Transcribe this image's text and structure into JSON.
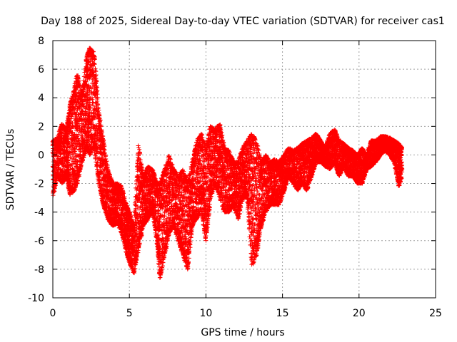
{
  "chart_data": {
    "type": "scatter",
    "title": "Day 188 of 2025, Sidereal Day-to-day VTEC variation (SDTVAR) for receiver cas1",
    "xlabel": "GPS time / hours",
    "ylabel": "SDTVAR / TECUs",
    "xlim": [
      0,
      25
    ],
    "ylim": [
      -10,
      8
    ],
    "xticks": [
      0,
      5,
      10,
      15,
      20,
      25
    ],
    "yticks": [
      -10,
      -8,
      -6,
      -4,
      -2,
      0,
      2,
      4,
      6,
      8
    ],
    "grid": true,
    "marker": "+",
    "color": "#ff0000",
    "series": [
      {
        "name": "SDTVAR",
        "envelope": [
          [
            0.0,
            -3.0,
            1.0
          ],
          [
            0.3,
            -1.5,
            1.2
          ],
          [
            0.6,
            -2.0,
            2.2
          ],
          [
            0.9,
            -1.5,
            1.8
          ],
          [
            1.1,
            -2.8,
            3.5
          ],
          [
            1.4,
            -2.5,
            4.7
          ],
          [
            1.6,
            -2.0,
            5.7
          ],
          [
            1.9,
            -0.5,
            4.2
          ],
          [
            2.2,
            0.5,
            6.8
          ],
          [
            2.4,
            0.0,
            7.5
          ],
          [
            2.7,
            0.5,
            7.2
          ],
          [
            3.0,
            -2.0,
            3.0
          ],
          [
            3.3,
            -3.5,
            1.0
          ],
          [
            3.6,
            -4.5,
            -1.0
          ],
          [
            3.9,
            -5.0,
            -2.0
          ],
          [
            4.2,
            -4.8,
            -2.0
          ],
          [
            4.5,
            -5.5,
            -2.2
          ],
          [
            4.8,
            -6.8,
            -3.5
          ],
          [
            5.0,
            -7.5,
            -4.0
          ],
          [
            5.3,
            -8.3,
            -5.0
          ],
          [
            5.6,
            -6.5,
            0.8
          ],
          [
            5.9,
            -5.0,
            -1.5
          ],
          [
            6.2,
            -4.5,
            -0.8
          ],
          [
            6.5,
            -4.0,
            -1.0
          ],
          [
            6.8,
            -6.0,
            -2.0
          ],
          [
            7.0,
            -8.8,
            -2.0
          ],
          [
            7.3,
            -7.0,
            -1.0
          ],
          [
            7.6,
            -5.5,
            0.0
          ],
          [
            7.9,
            -5.0,
            -1.0
          ],
          [
            8.2,
            -6.0,
            -1.5
          ],
          [
            8.5,
            -7.0,
            -1.0
          ],
          [
            8.8,
            -8.0,
            -2.0
          ],
          [
            9.1,
            -5.0,
            -0.5
          ],
          [
            9.4,
            -4.5,
            1.0
          ],
          [
            9.7,
            -4.0,
            1.5
          ],
          [
            10.0,
            -6.0,
            0.5
          ],
          [
            10.3,
            -3.0,
            2.0
          ],
          [
            10.6,
            -2.0,
            1.8
          ],
          [
            10.9,
            -3.0,
            2.2
          ],
          [
            11.2,
            -4.0,
            0.5
          ],
          [
            11.5,
            -4.0,
            0.3
          ],
          [
            11.8,
            -3.5,
            -0.5
          ],
          [
            12.1,
            -4.5,
            -0.5
          ],
          [
            12.4,
            -3.0,
            0.5
          ],
          [
            12.7,
            -3.0,
            1.0
          ],
          [
            13.0,
            -7.8,
            1.5
          ],
          [
            13.3,
            -7.0,
            1.0
          ],
          [
            13.6,
            -5.0,
            -0.5
          ],
          [
            13.9,
            -4.0,
            0.0
          ],
          [
            14.2,
            -3.5,
            -0.5
          ],
          [
            14.5,
            -3.5,
            -0.3
          ],
          [
            14.8,
            -3.5,
            -0.5
          ],
          [
            15.1,
            -2.5,
            0.0
          ],
          [
            15.4,
            -1.5,
            0.5
          ],
          [
            15.7,
            -2.0,
            0.3
          ],
          [
            16.0,
            -2.5,
            0.5
          ],
          [
            16.3,
            -2.0,
            0.8
          ],
          [
            16.6,
            -2.5,
            1.0
          ],
          [
            16.9,
            -1.5,
            1.2
          ],
          [
            17.2,
            -0.5,
            1.5
          ],
          [
            17.5,
            -0.5,
            1.0
          ],
          [
            17.8,
            -0.8,
            0.5
          ],
          [
            18.1,
            -1.0,
            1.5
          ],
          [
            18.4,
            -0.5,
            1.8
          ],
          [
            18.7,
            -1.5,
            1.0
          ],
          [
            19.0,
            -0.8,
            0.8
          ],
          [
            19.3,
            -1.5,
            0.5
          ],
          [
            19.6,
            -1.5,
            0.3
          ],
          [
            19.9,
            -2.0,
            0.0
          ],
          [
            20.2,
            -2.0,
            0.5
          ],
          [
            20.5,
            -1.0,
            0.0
          ],
          [
            20.8,
            -0.8,
            1.0
          ],
          [
            21.1,
            -0.5,
            1.0
          ],
          [
            21.4,
            0.0,
            1.3
          ],
          [
            21.7,
            0.3,
            1.3
          ],
          [
            22.0,
            0.0,
            1.2
          ],
          [
            22.3,
            -0.5,
            1.0
          ],
          [
            22.6,
            -2.2,
            0.8
          ],
          [
            22.8,
            -1.5,
            0.5
          ]
        ]
      }
    ]
  }
}
